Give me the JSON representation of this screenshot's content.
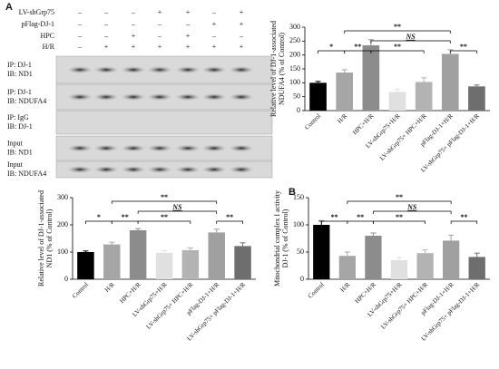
{
  "panel_a": "A",
  "panel_b": "B",
  "blot": {
    "conditions": [
      {
        "label": "LV-shGrp75",
        "signs": [
          "–",
          "–",
          "–",
          "+",
          "+",
          "–",
          "+"
        ]
      },
      {
        "label": "pFlag-DJ-1",
        "signs": [
          "–",
          "–",
          "–",
          "–",
          "–",
          "+",
          "+"
        ]
      },
      {
        "label": "HPC",
        "signs": [
          "–",
          "–",
          "+",
          "–",
          "+",
          "–",
          "–"
        ]
      },
      {
        "label": "H/R",
        "signs": [
          "–",
          "+",
          "+",
          "+",
          "+",
          "+",
          "+"
        ]
      }
    ],
    "rows": [
      {
        "top": "IP: DJ-1",
        "bottom": "IB: ND1"
      },
      {
        "top": "IP: DJ-1",
        "bottom": "IB: NDUFA4"
      },
      {
        "top": "IP: IgG",
        "bottom": "IB: DJ-1"
      },
      {
        "top": "Input",
        "bottom": "IB: ND1"
      },
      {
        "top": "Input",
        "bottom": "IB: NDUFA4"
      }
    ]
  },
  "chart_data": [
    {
      "type": "bar",
      "ylabel": [
        "Relative level of DJ-1-associated",
        "NDUFA4 (% of Control)"
      ],
      "categories": [
        "Control",
        "H/R",
        "HPC+H/R",
        "LV-shGrp75+H/R",
        "LV-shGrp75+ HPC+H/R",
        "pFlag-DJ-1+H/R",
        "LV-shGrp75+ pFlag-DJ-1+H/R"
      ],
      "values": [
        100,
        137,
        235,
        67,
        103,
        204,
        87
      ],
      "errors": [
        5,
        10,
        20,
        10,
        15,
        15,
        5
      ],
      "colors": [
        "#000000",
        "#a6a6a6",
        "#8c8c8c",
        "#e0e0e0",
        "#b3b3b3",
        "#a0a0a0",
        "#6e6e6e"
      ],
      "ylim": [
        0,
        300
      ],
      "yticks": [
        0,
        50,
        100,
        150,
        200,
        250,
        300
      ],
      "significance": [
        {
          "from": 0,
          "to": 1,
          "label": "*"
        },
        {
          "from": 1,
          "to": 2,
          "label": "**"
        },
        {
          "from": 2,
          "to": 4,
          "label": "**"
        },
        {
          "from": 5,
          "to": 6,
          "label": "**"
        },
        {
          "from": 2,
          "to": 5,
          "label": "NS"
        },
        {
          "from": 1,
          "to": 5,
          "label": "**"
        }
      ]
    },
    {
      "type": "bar",
      "ylabel": [
        "Relative level of DJ-1-associated",
        "ND1 (% of Control)"
      ],
      "categories": [
        "Control",
        "H/R",
        "HPC+H/R",
        "LV-shGrp75+H/R",
        "LV-shGrp75+ HPC+H/R",
        "pFlag-DJ-1+H/R",
        "LV-shGrp75+ pFlag-DJ-1+H/R"
      ],
      "values": [
        100,
        128,
        180,
        97,
        107,
        172,
        122
      ],
      "errors": [
        4,
        8,
        6,
        8,
        8,
        12,
        12
      ],
      "colors": [
        "#000000",
        "#a6a6a6",
        "#8c8c8c",
        "#e0e0e0",
        "#b3b3b3",
        "#a0a0a0",
        "#6e6e6e"
      ],
      "ylim": [
        0,
        300
      ],
      "yticks": [
        0,
        100,
        200,
        300
      ],
      "significance": [
        {
          "from": 0,
          "to": 1,
          "label": "*"
        },
        {
          "from": 1,
          "to": 2,
          "label": "**"
        },
        {
          "from": 2,
          "to": 4,
          "label": "**"
        },
        {
          "from": 5,
          "to": 6,
          "label": "**"
        },
        {
          "from": 2,
          "to": 5,
          "label": "NS"
        },
        {
          "from": 1,
          "to": 5,
          "label": "**"
        }
      ]
    },
    {
      "type": "bar",
      "ylabel": [
        "Mitochondrial complex I activity",
        "DJ-1 (% of Control)"
      ],
      "categories": [
        "Control",
        "H/R",
        "HPC+H/R",
        "LV-shGrp75+H/R",
        "LV-shGrp75+ HPC+H/R",
        "pFlag-DJ-1+H/R",
        "LV-shGrp75+ pFlag-DJ-1+H/R"
      ],
      "values": [
        100,
        43,
        80,
        35,
        48,
        71,
        41
      ],
      "errors": [
        7,
        7,
        5,
        5,
        6,
        10,
        7
      ],
      "colors": [
        "#000000",
        "#a6a6a6",
        "#8c8c8c",
        "#e0e0e0",
        "#b3b3b3",
        "#a0a0a0",
        "#6e6e6e"
      ],
      "ylim": [
        0,
        150
      ],
      "yticks": [
        0,
        50,
        100,
        150
      ],
      "significance": [
        {
          "from": 0,
          "to": 1,
          "label": "**"
        },
        {
          "from": 1,
          "to": 2,
          "label": "**"
        },
        {
          "from": 2,
          "to": 4,
          "label": "**"
        },
        {
          "from": 5,
          "to": 6,
          "label": "**"
        },
        {
          "from": 2,
          "to": 5,
          "label": "NS"
        },
        {
          "from": 1,
          "to": 5,
          "label": "**"
        }
      ]
    }
  ]
}
